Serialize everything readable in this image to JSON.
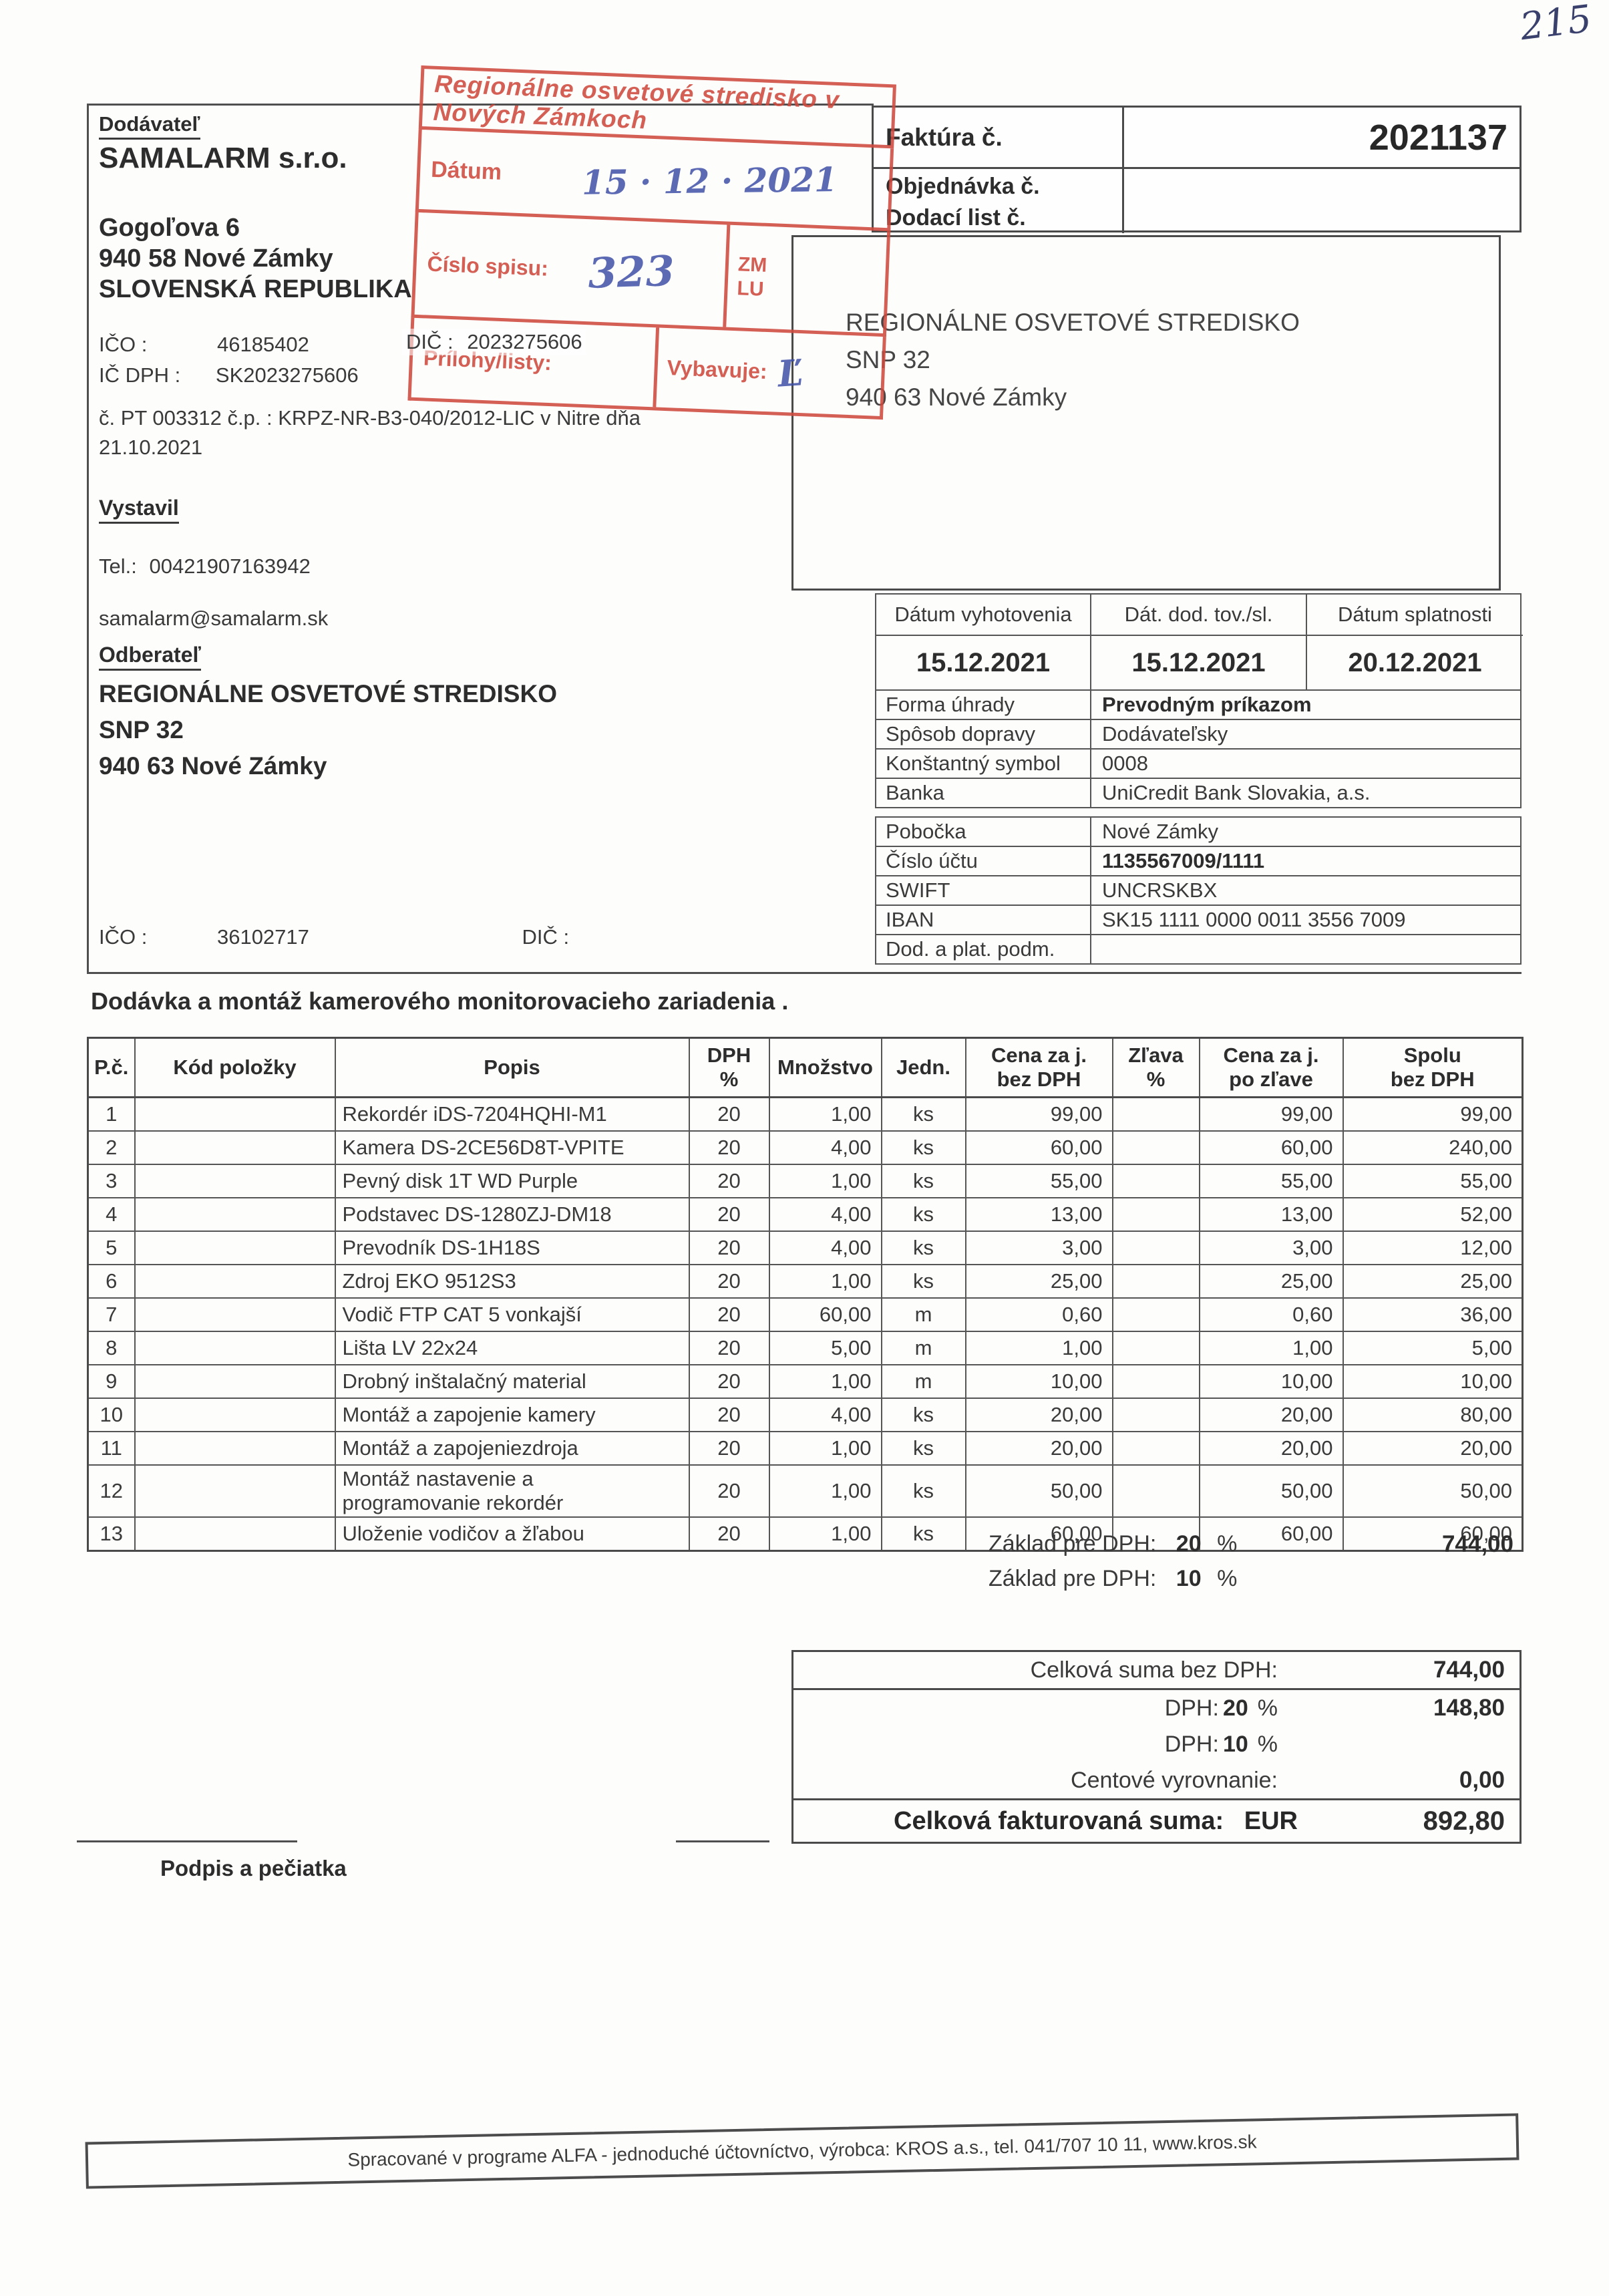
{
  "page": {
    "handwritten_corner_note": "215"
  },
  "supplier": {
    "section_label": "Dodávateľ",
    "name": "SAMALARM s.r.o.",
    "street": "Gogoľova 6",
    "city": "940 58 Nové Zámky",
    "country": "SLOVENSKÁ REPUBLIKA",
    "ico_label": "IČO :",
    "ico": "46185402",
    "ic_dph_label": "IČ DPH :",
    "ic_dph": "SK2023275606",
    "dic_label": "DIČ :",
    "dic": "2023275606",
    "license_line1": "č. PT 003312  č.p. : KRPZ-NR-B3-040/2012-LIC v Nitre dňa",
    "license_line2": "21.10.2021",
    "issued_by_label": "Vystavil",
    "phone_label": "Tel.:",
    "phone": "00421907163942",
    "email": "samalarm@samalarm.sk"
  },
  "stamp": {
    "title": "Regionálne osvetové stredisko v Nových Zámkoch",
    "date_label": "Dátum",
    "date_handwritten": "15 · 12 · 2021",
    "file_no_label": "Číslo spisu:",
    "file_no_handwritten": "323",
    "code_line1": "ZM",
    "code_line2": "LU",
    "attachments_label": "Prílohy/listy:",
    "handled_by_label": "Vybavuje:",
    "handled_by_handwritten": "Ľ"
  },
  "invoice_header": {
    "invoice_label": "Faktúra č.",
    "invoice_number": "2021137",
    "order_label": "Objednávka č.",
    "delivery_note_label": "Dodací list č."
  },
  "recipient_window": {
    "name": "REGIONÁLNE OSVETOVÉ STREDISKO",
    "street": "SNP 32",
    "city": "940 63 Nové Zámky"
  },
  "customer": {
    "section_label": "Odberateľ",
    "name": "REGIONÁLNE OSVETOVÉ STREDISKO",
    "street": "SNP 32",
    "city": "940 63 Nové Zámky",
    "ico_label": "IČO :",
    "ico": "36102717",
    "dic_label": "DIČ :"
  },
  "meta_table": {
    "date_headers": [
      "Dátum vyhotovenia",
      "Dát. dod. tov./sl.",
      "Dátum splatnosti"
    ],
    "date_values": [
      "15.12.2021",
      "15.12.2021",
      "20.12.2021"
    ],
    "payment_block1": [
      {
        "label": "Forma úhrady",
        "value": "Prevodným príkazom",
        "bold": true
      },
      {
        "label": "Spôsob dopravy",
        "value": "Dodávateľsky",
        "bold": false
      },
      {
        "label": "Konštantný symbol",
        "value": "0008",
        "bold": false
      },
      {
        "label": "Banka",
        "value": "UniCredit Bank Slovakia, a.s.",
        "bold": false
      }
    ],
    "payment_block2": [
      {
        "label": "Pobočka",
        "value": "Nové Zámky",
        "bold": false
      },
      {
        "label": "Číslo účtu",
        "value": "1135567009/1111",
        "bold": true
      },
      {
        "label": "SWIFT",
        "value": "UNCRSKBX",
        "bold": false
      },
      {
        "label": "IBAN",
        "value": "SK15 1111 0000 0011 3556 7009",
        "bold": false
      },
      {
        "label": "Dod. a plat. podm.",
        "value": "",
        "bold": false
      }
    ]
  },
  "items_section": {
    "title": "Dodávka a montáž kamerového monitorovacieho zariadenia .",
    "columns": [
      "P.č.",
      "Kód položky",
      "Popis",
      "DPH\n%",
      "Množstvo",
      "Jedn.",
      "Cena za j.\nbez DPH",
      "Zľava\n%",
      "Cena za j.\npo zľave",
      "Spolu\nbez DPH"
    ],
    "rows": [
      {
        "no": "1",
        "code": "",
        "desc": "Rekordér iDS-7204HQHI-M1",
        "dph": "20",
        "qty": "1,00",
        "unit": "ks",
        "unit_price": "99,00",
        "discount": "",
        "price_after": "99,00",
        "total": "99,00"
      },
      {
        "no": "2",
        "code": "",
        "desc": "Kamera DS-2CE56D8T-VPITE",
        "dph": "20",
        "qty": "4,00",
        "unit": "ks",
        "unit_price": "60,00",
        "discount": "",
        "price_after": "60,00",
        "total": "240,00"
      },
      {
        "no": "3",
        "code": "",
        "desc": "Pevný disk 1T WD Purple",
        "dph": "20",
        "qty": "1,00",
        "unit": "ks",
        "unit_price": "55,00",
        "discount": "",
        "price_after": "55,00",
        "total": "55,00"
      },
      {
        "no": "4",
        "code": "",
        "desc": "Podstavec DS-1280ZJ-DM18",
        "dph": "20",
        "qty": "4,00",
        "unit": "ks",
        "unit_price": "13,00",
        "discount": "",
        "price_after": "13,00",
        "total": "52,00"
      },
      {
        "no": "5",
        "code": "",
        "desc": "Prevodník DS-1H18S",
        "dph": "20",
        "qty": "4,00",
        "unit": "ks",
        "unit_price": "3,00",
        "discount": "",
        "price_after": "3,00",
        "total": "12,00"
      },
      {
        "no": "6",
        "code": "",
        "desc": "Zdroj EKO 9512S3",
        "dph": "20",
        "qty": "1,00",
        "unit": "ks",
        "unit_price": "25,00",
        "discount": "",
        "price_after": "25,00",
        "total": "25,00"
      },
      {
        "no": "7",
        "code": "",
        "desc": "Vodič FTP CAT 5 vonkajší",
        "dph": "20",
        "qty": "60,00",
        "unit": "m",
        "unit_price": "0,60",
        "discount": "",
        "price_after": "0,60",
        "total": "36,00"
      },
      {
        "no": "8",
        "code": "",
        "desc": "Lišta LV 22x24",
        "dph": "20",
        "qty": "5,00",
        "unit": "m",
        "unit_price": "1,00",
        "discount": "",
        "price_after": "1,00",
        "total": "5,00"
      },
      {
        "no": "9",
        "code": "",
        "desc": "Drobný inštalačný material",
        "dph": "20",
        "qty": "1,00",
        "unit": "m",
        "unit_price": "10,00",
        "discount": "",
        "price_after": "10,00",
        "total": "10,00"
      },
      {
        "no": "10",
        "code": "",
        "desc": "Montáž a zapojenie kamery",
        "dph": "20",
        "qty": "4,00",
        "unit": "ks",
        "unit_price": "20,00",
        "discount": "",
        "price_after": "20,00",
        "total": "80,00"
      },
      {
        "no": "11",
        "code": "",
        "desc": "Montáž a zapojeniezdroja",
        "dph": "20",
        "qty": "1,00",
        "unit": "ks",
        "unit_price": "20,00",
        "discount": "",
        "price_after": "20,00",
        "total": "20,00"
      },
      {
        "no": "12",
        "code": "",
        "desc": "Montáž nastavenie a\nprogramovanie rekordér",
        "dph": "20",
        "qty": "1,00",
        "unit": "ks",
        "unit_price": "50,00",
        "discount": "",
        "price_after": "50,00",
        "total": "50,00"
      },
      {
        "no": "13",
        "code": "",
        "desc": "Uloženie vodičov a žľabou",
        "dph": "20",
        "qty": "1,00",
        "unit": "ks",
        "unit_price": "60,00",
        "discount": "",
        "price_after": "60,00",
        "total": "60,00"
      }
    ]
  },
  "vat_base": {
    "label": "Základ pre DPH:",
    "rate20": "20",
    "rate10": "10",
    "pct": "%",
    "value20": "744,00",
    "value10": ""
  },
  "totals": {
    "sum_no_vat_label": "Celková suma bez DPH:",
    "sum_no_vat": "744,00",
    "vat_label": "DPH:",
    "pct": "%",
    "vat20_rate": "20",
    "vat20_value": "148,80",
    "vat10_rate": "10",
    "vat10_value": "",
    "rounding_label": "Centové vyrovnanie:",
    "rounding_value": "0,00",
    "grand_label": "Celková fakturovaná suma:",
    "currency": "EUR",
    "grand_value": "892,80"
  },
  "signature": {
    "label": "Podpis a pečiatka"
  },
  "footer": {
    "text": "Spracované v programe ALFA - jednoduché účtovníctvo, výrobca: KROS a.s., tel. 041/707 10 11, www.kros.sk"
  },
  "colors": {
    "stamp_red": "#cf4a3f",
    "ink_blue": "#3d4da6",
    "text": "#3a3a3a",
    "line": "#4f4f4f"
  }
}
